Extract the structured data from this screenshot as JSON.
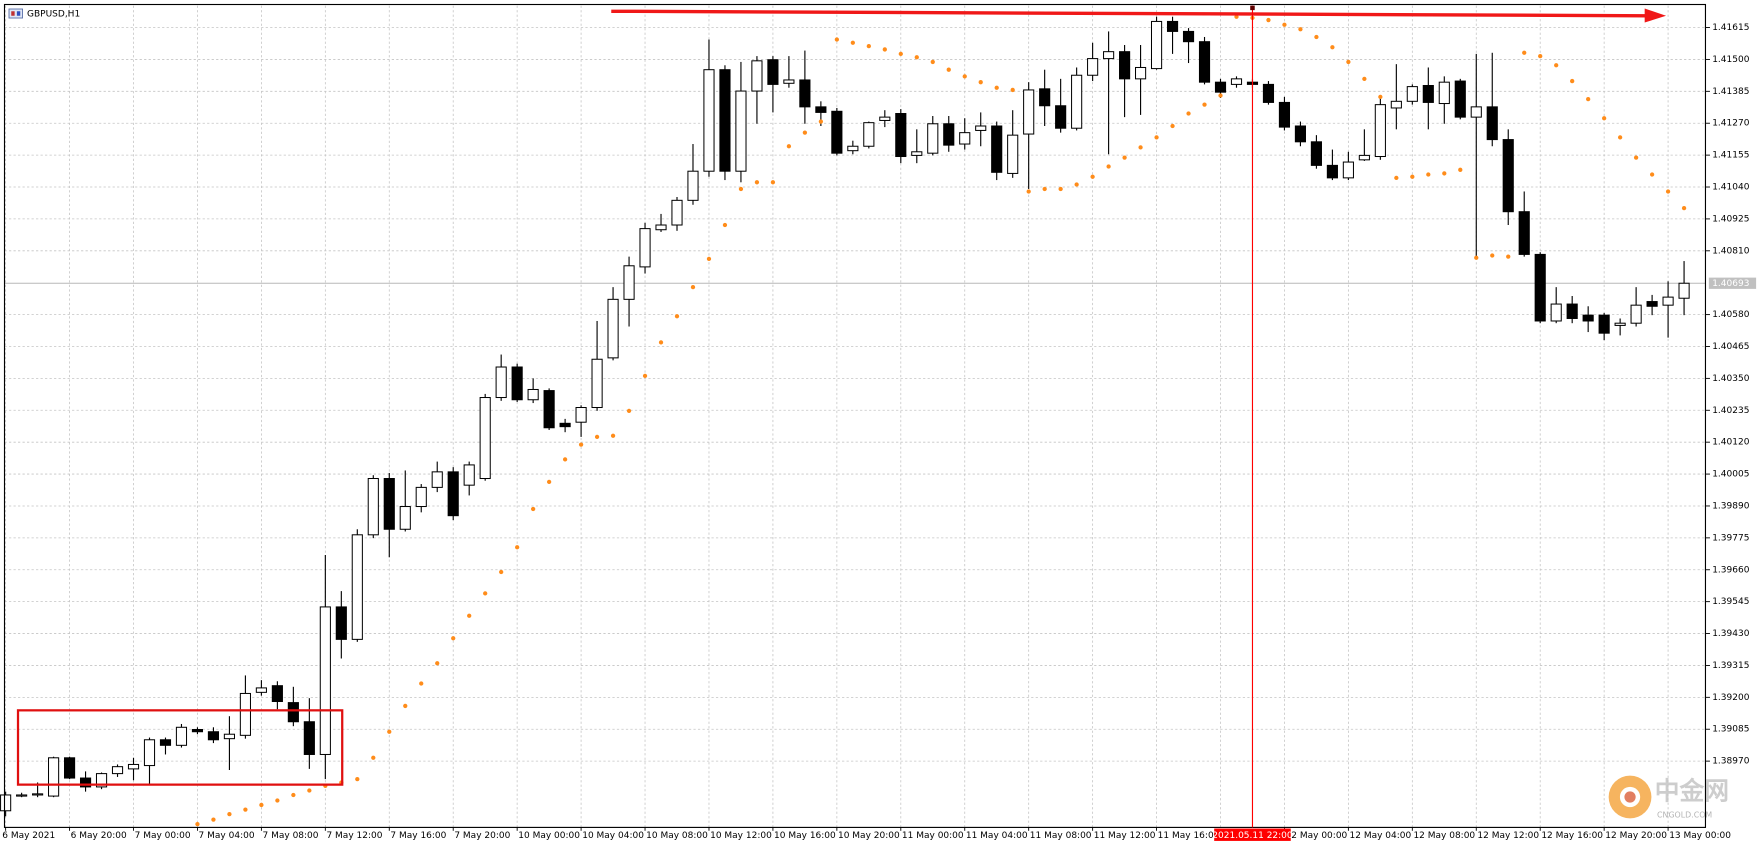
{
  "chart_data": {
    "type": "candlestick",
    "title": "GBPUSD,H1",
    "categories": [
      "6 May 2021",
      null,
      null,
      null,
      "6 May 20:00",
      null,
      null,
      null,
      "7 May 00:00",
      null,
      null,
      null,
      "7 May 04:00",
      null,
      null,
      null,
      "7 May 08:00",
      null,
      null,
      null,
      "7 May 12:00",
      null,
      null,
      null,
      "7 May 16:00",
      null,
      null,
      null,
      "7 May 20:00",
      null,
      null,
      null,
      "10 May 00:00",
      null,
      null,
      null,
      "10 May 04:00",
      null,
      null,
      null,
      "10 May 08:00",
      null,
      null,
      null,
      "10 May 12:00",
      null,
      null,
      null,
      "10 May 16:00",
      null,
      null,
      null,
      "10 May 20:00",
      null,
      null,
      null,
      "11 May 00:00",
      null,
      null,
      null,
      "11 May 04:00",
      null,
      null,
      null,
      "11 May 08:00",
      null,
      null,
      null,
      "11 May 12:00",
      null,
      null,
      null,
      "11 May 16:00",
      null,
      null,
      null,
      null,
      null,
      null,
      null,
      "12 May 00:00",
      null,
      null,
      null,
      "12 May 04:00",
      null,
      null,
      null,
      "12 May 08:00",
      null,
      null,
      null,
      "12 May 12:00",
      null,
      null,
      null,
      "12 May 16:00",
      null,
      null,
      null,
      "12 May 20:00",
      null,
      null,
      null,
      "13 May 00:00",
      null
    ],
    "open": [
      1.38791,
      1.38848,
      1.38848,
      1.38844,
      1.38982,
      1.38909,
      1.38877,
      1.38925,
      1.38942,
      1.38954,
      1.39047,
      1.39027,
      1.39084,
      1.39076,
      1.39051,
      1.39063,
      1.39218,
      1.39242,
      1.39181,
      1.39112,
      1.38994,
      1.39526,
      1.39409,
      1.39786,
      1.39989,
      1.39806,
      1.39888,
      1.39957,
      1.40013,
      1.39965,
      1.39989,
      1.40281,
      1.40391,
      1.40273,
      1.40306,
      1.40188,
      1.40192,
      1.40245,
      1.40424,
      1.40635,
      1.40752,
      1.40886,
      1.40903,
      1.40992,
      1.41097,
      1.41463,
      1.41097,
      1.41386,
      1.41499,
      1.41414,
      1.41426,
      1.41329,
      1.41313,
      1.41171,
      1.41187,
      1.4128,
      1.41305,
      1.41154,
      1.41162,
      1.41268,
      1.41195,
      1.41244,
      1.4126,
      1.41089,
      1.41231,
      1.41394,
      1.41333,
      1.41252,
      1.41443,
      1.41503,
      1.41528,
      1.4143,
      1.41467,
      1.41637,
      1.41601,
      1.41564,
      1.41418,
      1.4141,
      1.41418,
      1.4141,
      1.41345,
      1.4126,
      1.41203,
      1.41118,
      1.41073,
      1.41138,
      1.4115,
      1.41325,
      1.41349,
      1.41406,
      1.41341,
      1.41422,
      1.41292,
      1.41329,
      1.41211,
      1.40951,
      1.40797,
      1.40557,
      1.40618,
      1.40578,
      1.40578,
      1.40541,
      1.40549,
      1.40627,
      1.40614,
      1.40639
    ],
    "high": [
      1.3886,
      1.38856,
      1.38893,
      1.38986,
      1.38986,
      1.38933,
      1.38929,
      1.38958,
      1.38982,
      1.39055,
      1.39055,
      1.39104,
      1.39092,
      1.39092,
      1.39132,
      1.39279,
      1.39262,
      1.39258,
      1.39238,
      1.39197,
      1.39713,
      1.39583,
      1.39806,
      1.40001,
      1.40009,
      1.40018,
      1.39969,
      1.4005,
      1.4003,
      1.4005,
      1.40294,
      1.40436,
      1.40403,
      1.4035,
      1.40314,
      1.40204,
      1.40253,
      1.40557,
      1.40679,
      1.40789,
      1.40911,
      1.40943,
      1.41004,
      1.41195,
      1.41572,
      1.41479,
      1.41491,
      1.41512,
      1.41512,
      1.41512,
      1.41532,
      1.41349,
      1.41325,
      1.41207,
      1.41276,
      1.41317,
      1.41321,
      1.41248,
      1.41296,
      1.41296,
      1.41288,
      1.41309,
      1.41276,
      1.41317,
      1.41418,
      1.41463,
      1.4143,
      1.41471,
      1.4156,
      1.41601,
      1.41552,
      1.41552,
      1.41654,
      1.41654,
      1.41613,
      1.41581,
      1.4143,
      1.41439,
      1.4143,
      1.41422,
      1.41365,
      1.41276,
      1.41227,
      1.41175,
      1.41167,
      1.41248,
      1.4137,
      1.41483,
      1.4141,
      1.41471,
      1.41439,
      1.4143,
      1.4152,
      1.41524,
      1.41248,
      1.41024,
      1.40805,
      1.40679,
      1.40647,
      1.4061,
      1.40586,
      1.40566,
      1.40679,
      1.40651,
      1.407,
      1.40773
    ],
    "low": [
      1.38771,
      1.3884,
      1.3884,
      1.3884,
      1.38905,
      1.3886,
      1.38869,
      1.38913,
      1.38901,
      1.38889,
      1.38994,
      1.39019,
      1.39067,
      1.39035,
      1.38938,
      1.39051,
      1.39206,
      1.39157,
      1.39096,
      1.38942,
      1.38905,
      1.3934,
      1.394,
      1.39774,
      1.39705,
      1.39798,
      1.39867,
      1.3994,
      1.39839,
      1.39928,
      1.39981,
      1.40269,
      1.40265,
      1.40261,
      1.40164,
      1.40156,
      1.40139,
      1.40233,
      1.40415,
      1.40537,
      1.40728,
      1.40878,
      1.40882,
      1.40976,
      1.41077,
      1.41065,
      1.41057,
      1.41268,
      1.41309,
      1.41398,
      1.41268,
      1.4126,
      1.41154,
      1.41158,
      1.41179,
      1.41256,
      1.41126,
      1.41126,
      1.41154,
      1.41167,
      1.41175,
      1.41187,
      1.41065,
      1.41073,
      1.41033,
      1.4126,
      1.41236,
      1.41244,
      1.41422,
      1.41158,
      1.41292,
      1.413,
      1.41463,
      1.4152,
      1.41487,
      1.4141,
      1.41361,
      1.41398,
      1.41398,
      1.41337,
      1.41244,
      1.41187,
      1.41106,
      1.41065,
      1.41065,
      1.41134,
      1.41138,
      1.41248,
      1.41337,
      1.41248,
      1.41268,
      1.41284,
      1.40789,
      1.41187,
      1.40903,
      1.40789,
      1.40549,
      1.40549,
      1.40549,
      1.40517,
      1.40488,
      1.40505,
      1.40537,
      1.40578,
      1.40497,
      1.40578
    ],
    "close": [
      1.38848,
      1.38848,
      1.38852,
      1.38982,
      1.38909,
      1.38877,
      1.38925,
      1.3895,
      1.38958,
      1.39047,
      1.39027,
      1.39092,
      1.39076,
      1.39047,
      1.39067,
      1.39214,
      1.39234,
      1.39185,
      1.39112,
      1.38994,
      1.39526,
      1.39409,
      1.39786,
      1.39989,
      1.39806,
      1.39888,
      1.39957,
      1.40013,
      1.39855,
      1.40038,
      1.40281,
      1.40391,
      1.40273,
      1.4031,
      1.40172,
      1.40176,
      1.40245,
      1.40419,
      1.40635,
      1.40756,
      1.4089,
      1.40903,
      1.40992,
      1.41097,
      1.41463,
      1.41097,
      1.41386,
      1.41495,
      1.4141,
      1.41426,
      1.41329,
      1.41309,
      1.41162,
      1.41187,
      1.41272,
      1.41292,
      1.4115,
      1.41167,
      1.41268,
      1.41191,
      1.41236,
      1.4126,
      1.41093,
      1.41227,
      1.4139,
      1.41333,
      1.41252,
      1.41443,
      1.41503,
      1.41528,
      1.4143,
      1.41471,
      1.41637,
      1.41601,
      1.41564,
      1.41418,
      1.41382,
      1.4143,
      1.4141,
      1.41345,
      1.41256,
      1.41203,
      1.41118,
      1.41073,
      1.4113,
      1.41154,
      1.41337,
      1.41349,
      1.41402,
      1.41345,
      1.41418,
      1.41292,
      1.41329,
      1.41211,
      1.40951,
      1.40797,
      1.40557,
      1.40618,
      1.40566,
      1.40557,
      1.40513,
      1.40549,
      1.40614,
      1.4061,
      1.40643,
      1.40693
    ],
    "up_color": "#ffffff",
    "down_color": "#000000",
    "sar": {
      "color": "#ff8c1a",
      "values": [
        null,
        null,
        null,
        null,
        null,
        null,
        null,
        null,
        null,
        null,
        null,
        null,
        1.38743,
        1.38759,
        1.38779,
        1.38795,
        1.38812,
        1.38828,
        1.38848,
        1.38864,
        1.38881,
        1.38893,
        1.38905,
        1.38982,
        1.39076,
        1.39169,
        1.3925,
        1.39323,
        1.39413,
        1.39494,
        1.39575,
        1.39652,
        1.39741,
        1.39879,
        1.39977,
        1.40058,
        1.40111,
        1.40139,
        1.40143,
        1.40233,
        1.40359,
        1.4048,
        1.40574,
        1.40679,
        1.40781,
        1.40903,
        1.41033,
        1.41057,
        1.41057,
        1.41187,
        1.41236,
        1.41276,
        1.41572,
        1.4156,
        1.41548,
        1.41536,
        1.4152,
        1.41508,
        1.41491,
        1.41463,
        1.41439,
        1.41418,
        1.41398,
        1.4139,
        1.41024,
        1.41033,
        1.41033,
        1.41049,
        1.41077,
        1.41114,
        1.41146,
        1.41183,
        1.41219,
        1.4126,
        1.41305,
        1.41337,
        1.4137,
        1.41654,
        1.4165,
        1.41642,
        1.41625,
        1.41609,
        1.41581,
        1.41544,
        1.41491,
        1.4143,
        1.41365,
        1.41073,
        1.41077,
        1.41085,
        1.41089,
        1.41102,
        1.40785,
        1.40793,
        1.40789,
        1.41524,
        1.41512,
        1.41479,
        1.41422,
        1.41357,
        1.41288,
        1.41219,
        1.41146,
        1.41085,
        1.41024,
        1.40964
      ]
    },
    "current_price": 1.40693,
    "crosshair": {
      "label": "2021.05.11 22:00",
      "category_index": 78,
      "color": "#ff0000"
    },
    "ylim": [
      1.38731,
      1.41694
    ],
    "yticks": [
      {
        "value": 1.3897,
        "label": "1.38970"
      },
      1.39085,
      {
        "value": 1.392,
        "label": "1.39200"
      },
      1.39315,
      {
        "value": 1.3943,
        "label": "1.39430"
      },
      1.39545,
      {
        "value": 1.3966,
        "label": "1.39660"
      },
      1.39775,
      {
        "value": 1.3989,
        "label": "1.39890"
      },
      1.40005,
      {
        "value": 1.4012,
        "label": "1.40120"
      },
      1.40235,
      {
        "value": 1.4035,
        "label": "1.40350"
      },
      1.40465,
      {
        "value": 1.4058,
        "label": "1.40580"
      },
      {
        "value": 1.4081,
        "label": "1.40810"
      },
      1.40925,
      {
        "value": 1.4104,
        "label": "1.41040"
      },
      1.41155,
      {
        "value": 1.4127,
        "label": "1.41270"
      },
      1.41385,
      {
        "value": 1.415,
        "label": "1.41500"
      },
      1.41615
    ],
    "grid": true,
    "watermark": {
      "name": "中金网",
      "site": "CNGOLD.COM"
    }
  }
}
